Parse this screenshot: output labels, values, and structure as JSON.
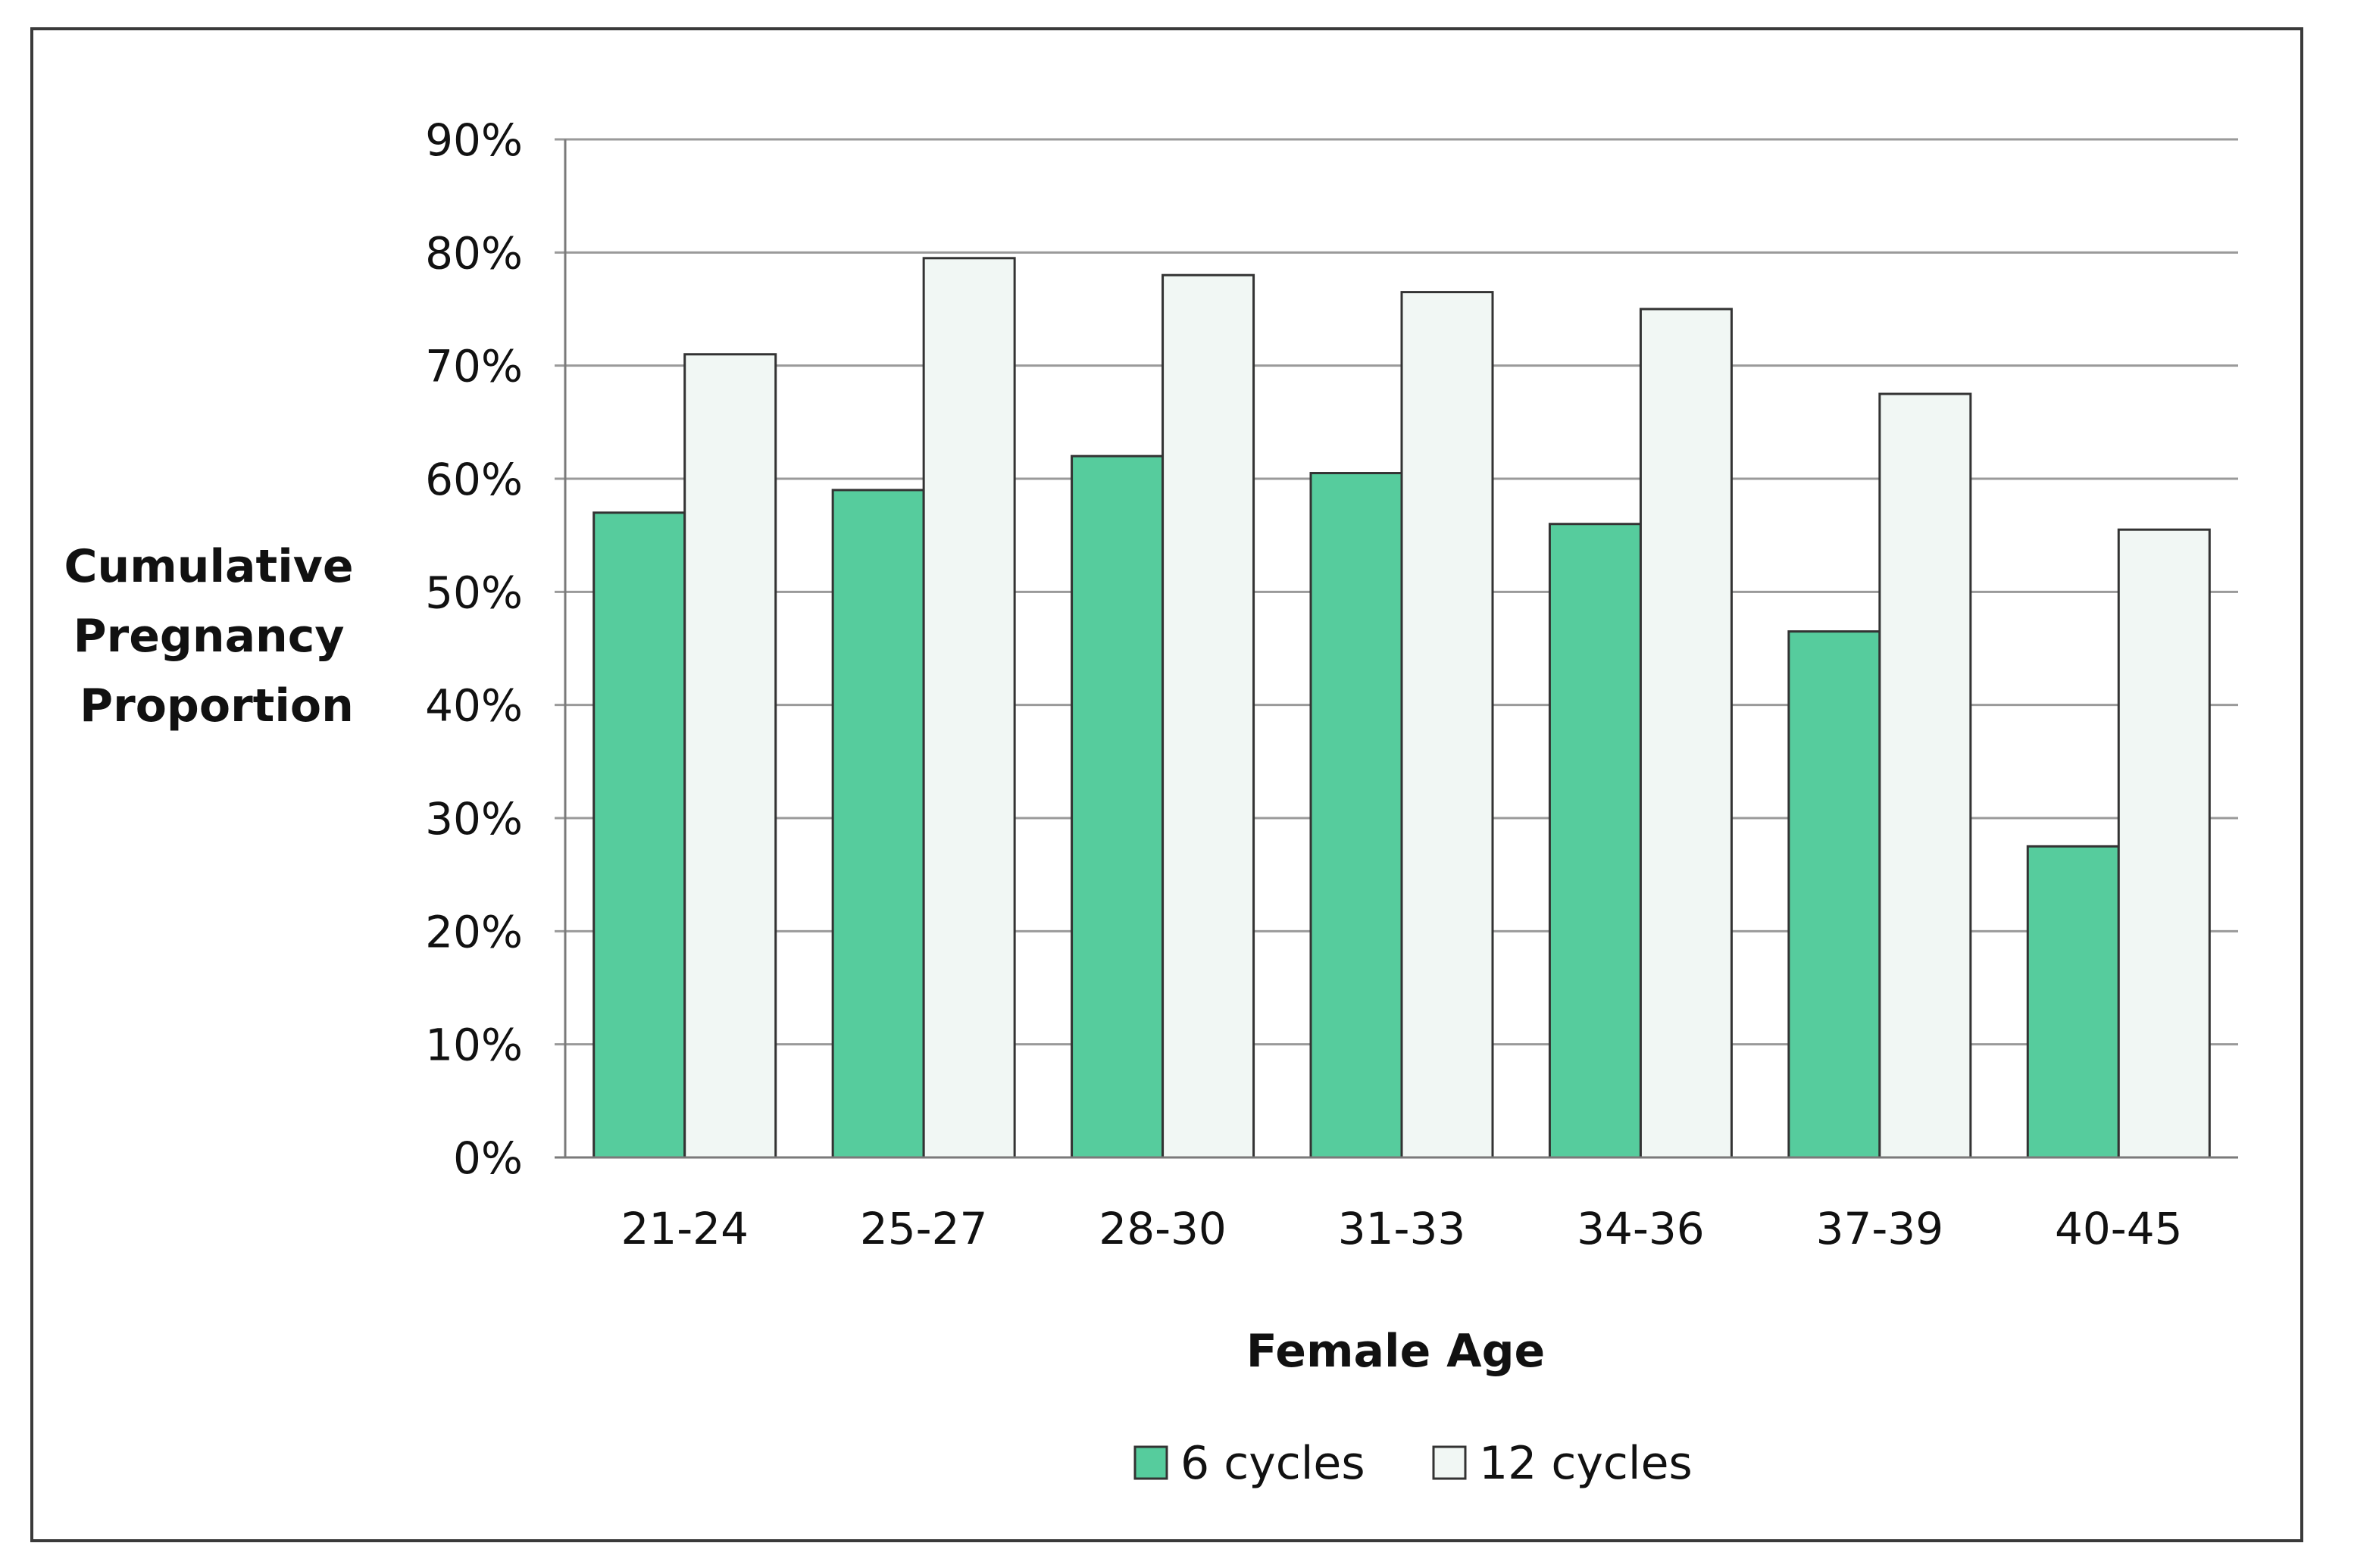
{
  "chart_data": {
    "type": "bar",
    "title": "",
    "xlabel": "Female Age",
    "ylabel": "Cumulative Pregnancy Proportion",
    "categories": [
      "21-24",
      "25-27",
      "28-30",
      "31-33",
      "34-36",
      "37-39",
      "40-45"
    ],
    "series": [
      {
        "name": "6 cycles",
        "color": "#56cc9d",
        "values": [
          57,
          59,
          62,
          60.5,
          56,
          46.5,
          27.5
        ]
      },
      {
        "name": "12 cycles",
        "color": "#f1f7f4",
        "values": [
          71,
          79.5,
          78,
          76.5,
          75,
          67.5,
          55.5
        ]
      }
    ],
    "ylim": [
      0,
      90
    ],
    "yticks": [
      0,
      10,
      20,
      30,
      40,
      50,
      60,
      70,
      80,
      90
    ],
    "ytick_labels": [
      "0%",
      "10%",
      "20%",
      "30%",
      "40%",
      "50%",
      "60%",
      "70%",
      "80%",
      "90%"
    ],
    "grid": true,
    "legend_position": "bottom-center",
    "colors": {
      "bar_stroke": "#333333",
      "gridline": "#9a9a9a",
      "axis": "#7a7a7a"
    }
  }
}
